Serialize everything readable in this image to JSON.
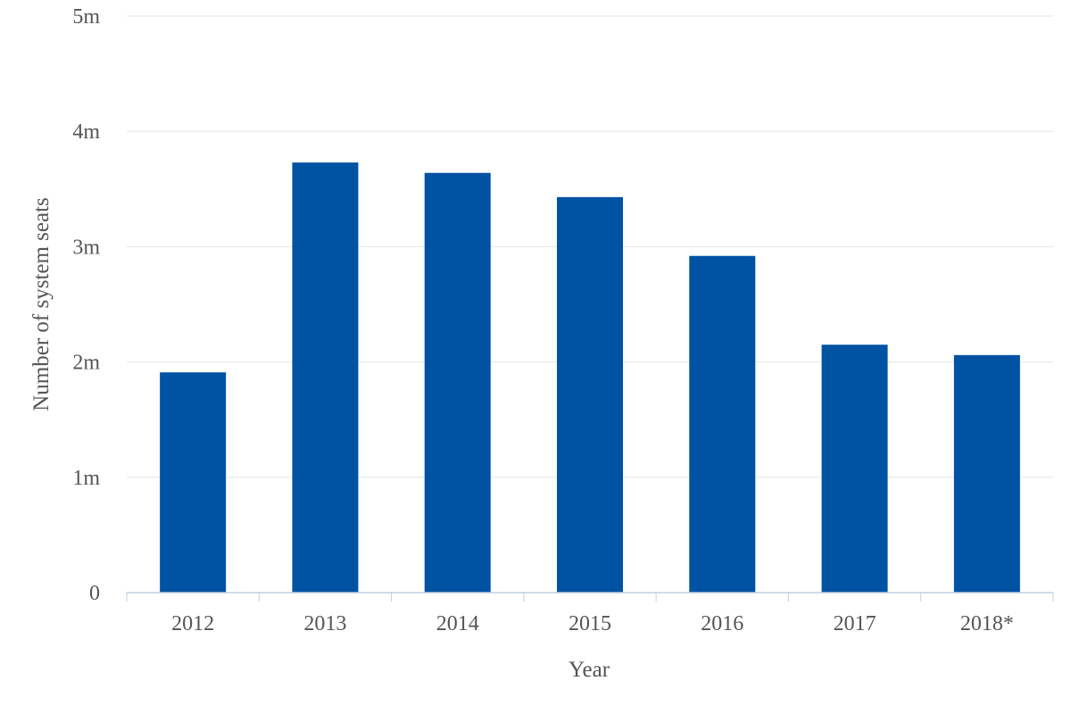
{
  "chart_data": {
    "type": "bar",
    "categories": [
      "2012",
      "2013",
      "2014",
      "2015",
      "2016",
      "2017",
      "2018*"
    ],
    "series": [
      {
        "values": [
          1910000,
          3730000,
          3640000,
          3430000,
          2920000,
          2150000,
          2060000
        ],
        "color": "#0052a3"
      }
    ],
    "title": "",
    "xlabel": "Year",
    "ylabel": "Number of system seats",
    "ylim": [
      0,
      5000000
    ],
    "y_ticks": [
      {
        "value": 0,
        "label": "0"
      },
      {
        "value": 1000000,
        "label": "1m"
      },
      {
        "value": 2000000,
        "label": "2m"
      },
      {
        "value": 3000000,
        "label": "3m"
      },
      {
        "value": 4000000,
        "label": "4m"
      },
      {
        "value": 5000000,
        "label": "5m"
      }
    ],
    "grid": true,
    "legend": "none"
  }
}
